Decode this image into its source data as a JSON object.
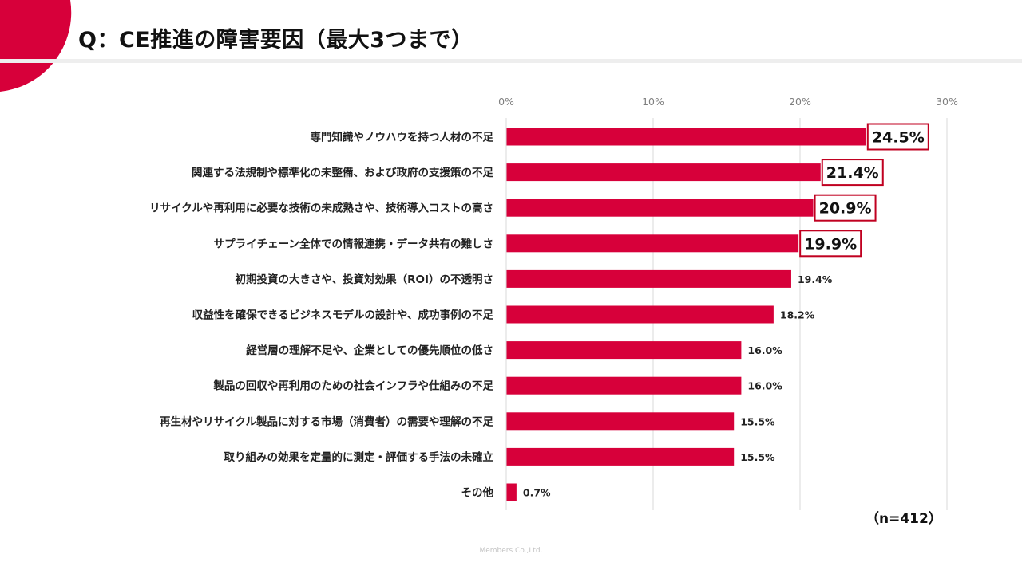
{
  "slide": {
    "title": "Q：CE推進の障害要因（最大3つまで）",
    "sample_size": "（n=412）",
    "footer": "Members Co.,Ltd."
  },
  "colors": {
    "bar": "#d7003a",
    "accent": "#d7003a",
    "highlight_border": "#c00020",
    "gridline": "#d9d9d9",
    "axis_text": "#7f7f7f"
  },
  "chart_data": {
    "type": "bar",
    "orientation": "horizontal",
    "title": "",
    "xlabel": "",
    "ylabel": "",
    "xlim": [
      0,
      30
    ],
    "xticks": [
      0,
      10,
      20,
      30
    ],
    "xtick_labels": [
      "0%",
      "10%",
      "20%",
      "30%"
    ],
    "grid": true,
    "categories": [
      "専門知識やノウハウを持つ人材の不足",
      "関連する法規制や標準化の未整備、および政府の支援策の不足",
      "リサイクルや再利用に必要な技術の未成熟さや、技術導入コストの高さ",
      "サプライチェーン全体での情報連携・データ共有の難しさ",
      "初期投資の大きさや、投資対効果（ROI）の不透明さ",
      "収益性を確保できるビジネスモデルの設計や、成功事例の不足",
      "経営層の理解不足や、企業としての優先順位の低さ",
      "製品の回収や再利用のための社会インフラや仕組みの不足",
      "再生材やリサイクル製品に対する市場（消費者）の需要や理解の不足",
      "取り組みの効果を定量的に測定・評価する手法の未確立",
      "その他"
    ],
    "values": [
      24.5,
      21.4,
      20.9,
      19.9,
      19.4,
      18.2,
      16.0,
      16.0,
      15.5,
      15.5,
      0.7
    ],
    "data_labels": [
      "24.5%",
      "21.4%",
      "20.9%",
      "19.9%",
      "19.4%",
      "18.2%",
      "16.0%",
      "16.0%",
      "15.5%",
      "15.5%",
      "0.7%"
    ],
    "highlighted_count": 4
  }
}
